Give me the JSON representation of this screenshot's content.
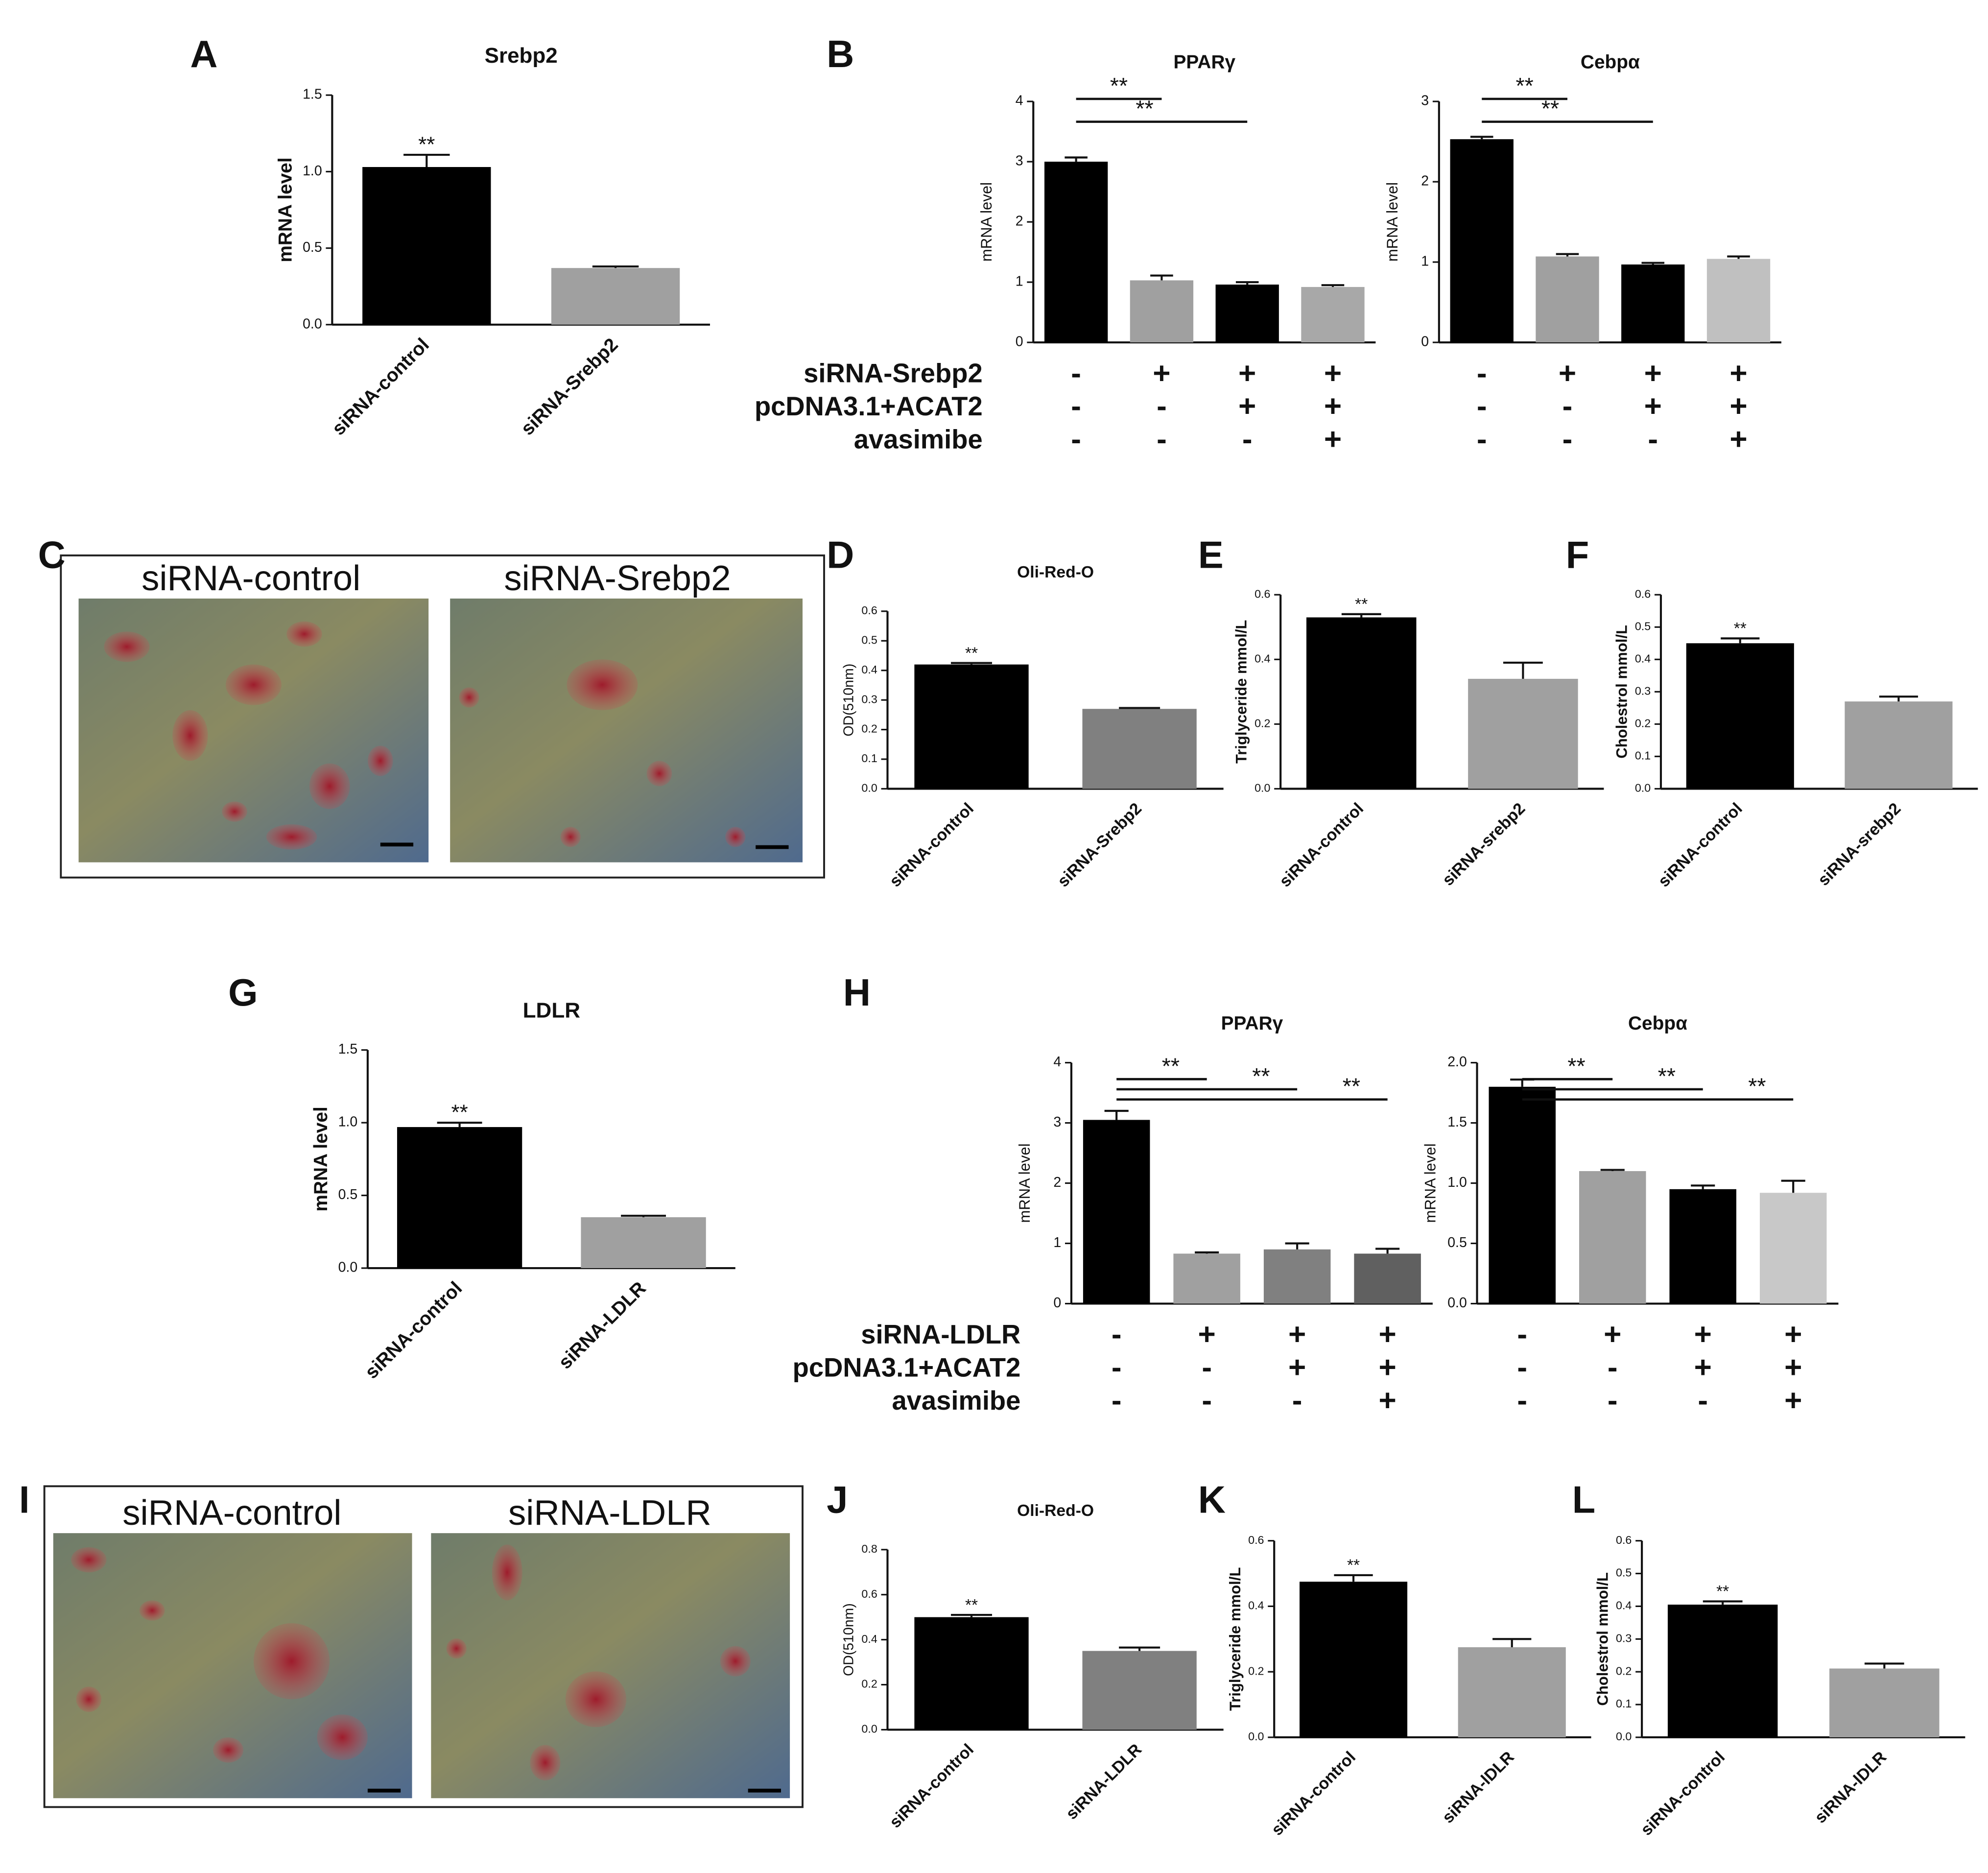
{
  "chart_data": [
    {
      "type": "bar",
      "panel": "A",
      "title": "Srebp2",
      "ylabel": "mRNA level",
      "categories": [
        "siRNA-control",
        "siRNA-Srebp2"
      ],
      "values": [
        1.03,
        0.37
      ],
      "errors": [
        0.08,
        0.01
      ],
      "colors": [
        "#000000",
        "#a0a0a0"
      ],
      "ylim": [
        0,
        1.5
      ],
      "yticks": [
        {
          "value": 0,
          "label": "0.0"
        },
        0.5,
        {
          "value": 1,
          "label": "1.0"
        },
        1.5
      ],
      "significance": [
        {
          "label": "**",
          "bar": 0
        }
      ]
    },
    {
      "type": "bar",
      "panel": "B",
      "title": "PPARγ",
      "ylabel": "mRNA level",
      "categories": [
        null,
        null,
        null,
        null
      ],
      "values": [
        3.0,
        1.03,
        0.96,
        0.92
      ],
      "errors": [
        0.07,
        0.08,
        0.04,
        0.03
      ],
      "colors": [
        "#000000",
        "#a0a0a0",
        "#000000",
        "#a8a8a8"
      ],
      "ylim": [
        0,
        4
      ],
      "yticks": [
        0,
        1,
        2,
        3,
        4
      ],
      "significance": [
        {
          "label": "**",
          "from": 0,
          "to": 1
        },
        {
          "label": "**",
          "from": 0,
          "to": 2
        }
      ],
      "condition_labels": [
        "siRNA-Srebp2",
        "pcDNA3.1+ACAT2",
        "avasimibe"
      ],
      "condition_signs": [
        [
          "-",
          "+",
          "+",
          "+"
        ],
        [
          "-",
          "-",
          "+",
          "+"
        ],
        [
          "-",
          "-",
          "-",
          "+"
        ]
      ]
    },
    {
      "type": "bar",
      "title": "Cebpα",
      "ylabel": "mRNA level",
      "categories": [
        null,
        null,
        null,
        null
      ],
      "values": [
        2.53,
        1.07,
        0.97,
        1.04
      ],
      "errors": [
        0.03,
        0.03,
        0.02,
        0.03
      ],
      "colors": [
        "#000000",
        "#a0a0a0",
        "#000000",
        "#c0c0c0"
      ],
      "ylim": [
        0,
        3
      ],
      "yticks": [
        0,
        1,
        2,
        3
      ],
      "significance": [
        {
          "label": "**",
          "from": 0,
          "to": 1
        },
        {
          "label": "**",
          "from": 0,
          "to": 2
        }
      ],
      "condition_signs": [
        [
          "-",
          "+",
          "+",
          "+"
        ],
        [
          "-",
          "-",
          "+",
          "+"
        ],
        [
          "-",
          "-",
          "-",
          "+"
        ]
      ]
    },
    {
      "type": "bar",
      "panel": "D",
      "title": "Oli-Red-O",
      "ylabel": "OD(510nm)",
      "categories": [
        "siRNA-control",
        "siRNA-Srebp2"
      ],
      "values": [
        0.42,
        0.27
      ],
      "errors": [
        0.005,
        0.003
      ],
      "colors": [
        "#000000",
        "#808080"
      ],
      "ylim": [
        0,
        0.6
      ],
      "yticks": [
        {
          "value": 0,
          "label": "0.0"
        },
        0.1,
        0.2,
        0.3,
        0.4,
        0.5,
        0.6
      ],
      "significance": [
        {
          "label": "**",
          "bar": 0
        }
      ]
    },
    {
      "type": "bar",
      "panel": "E",
      "ylabel": "Triglyceride mmol/L",
      "categories": [
        "siRNA-control",
        "siRNA-srebp2"
      ],
      "values": [
        0.53,
        0.34
      ],
      "errors": [
        0.01,
        0.05
      ],
      "colors": [
        "#000000",
        "#a0a0a0"
      ],
      "ylim": [
        0,
        0.6
      ],
      "yticks": [
        {
          "value": 0,
          "label": "0.0"
        },
        0.2,
        0.4,
        0.6
      ],
      "significance": [
        {
          "label": "**",
          "bar": 0
        }
      ]
    },
    {
      "type": "bar",
      "panel": "F",
      "ylabel": "Cholestrol mmol/L",
      "categories": [
        "siRNA-control",
        "siRNA-srebp2"
      ],
      "values": [
        0.45,
        0.27
      ],
      "errors": [
        0.015,
        0.015
      ],
      "colors": [
        "#000000",
        "#a0a0a0"
      ],
      "ylim": [
        0,
        0.6
      ],
      "yticks": [
        {
          "value": 0,
          "label": "0.0"
        },
        0.1,
        0.2,
        0.3,
        0.4,
        0.5,
        0.6
      ],
      "significance": [
        {
          "label": "**",
          "bar": 0
        }
      ]
    },
    {
      "type": "bar",
      "panel": "G",
      "title": "LDLR",
      "ylabel": "mRNA level",
      "categories": [
        "siRNA-control",
        "siRNA-LDLR"
      ],
      "values": [
        0.97,
        0.35
      ],
      "errors": [
        0.03,
        0.01
      ],
      "colors": [
        "#000000",
        "#a0a0a0"
      ],
      "ylim": [
        0,
        1.5
      ],
      "yticks": [
        {
          "value": 0,
          "label": "0.0"
        },
        0.5,
        {
          "value": 1,
          "label": "1.0"
        },
        1.5
      ],
      "significance": [
        {
          "label": "**",
          "bar": 0
        }
      ]
    },
    {
      "type": "bar",
      "panel": "H",
      "title": "PPARγ",
      "ylabel": "mRNA level",
      "categories": [
        null,
        null,
        null,
        null
      ],
      "values": [
        3.05,
        0.83,
        0.9,
        0.83
      ],
      "errors": [
        0.15,
        0.02,
        0.1,
        0.08
      ],
      "colors": [
        "#000000",
        "#a0a0a0",
        "#808080",
        "#606060"
      ],
      "ylim": [
        0,
        4
      ],
      "yticks": [
        0,
        1,
        2,
        3,
        4
      ],
      "significance": [
        {
          "label": "**",
          "from": 0,
          "to": 1
        },
        {
          "label": "**",
          "from": 0,
          "to": 2
        },
        {
          "label": "**",
          "from": 0,
          "to": 3
        }
      ],
      "condition_labels": [
        "siRNA-LDLR",
        "pcDNA3.1+ACAT2",
        "avasimibe"
      ],
      "condition_signs": [
        [
          "-",
          "+",
          "+",
          "+"
        ],
        [
          "-",
          "-",
          "+",
          "+"
        ],
        [
          "-",
          "-",
          "-",
          "+"
        ]
      ]
    },
    {
      "type": "bar",
      "title": "Cebpα",
      "ylabel": "mRNA level",
      "categories": [
        null,
        null,
        null,
        null
      ],
      "values": [
        1.8,
        1.1,
        0.95,
        0.92
      ],
      "errors": [
        0.06,
        0.01,
        0.03,
        0.1
      ],
      "colors": [
        "#000000",
        "#a0a0a0",
        "#000000",
        "#c8c8c8"
      ],
      "ylim": [
        0,
        2
      ],
      "yticks": [
        {
          "value": 0,
          "label": "0.0"
        },
        0.5,
        {
          "value": 1,
          "label": "1.0"
        },
        1.5,
        {
          "value": 2,
          "label": "2.0"
        }
      ],
      "significance": [
        {
          "label": "**",
          "from": 0,
          "to": 1
        },
        {
          "label": "**",
          "from": 0,
          "to": 2
        },
        {
          "label": "**",
          "from": 0,
          "to": 3
        }
      ],
      "condition_signs": [
        [
          "-",
          "+",
          "+",
          "+"
        ],
        [
          "-",
          "-",
          "+",
          "+"
        ],
        [
          "-",
          "-",
          "-",
          "+"
        ]
      ]
    },
    {
      "type": "bar",
      "panel": "J",
      "title": "Oli-Red-O",
      "ylabel": "OD(510nm)",
      "categories": [
        "siRNA-control",
        "siRNA-LDLR"
      ],
      "values": [
        0.5,
        0.35
      ],
      "errors": [
        0.01,
        0.015
      ],
      "colors": [
        "#000000",
        "#808080"
      ],
      "ylim": [
        0,
        0.8
      ],
      "yticks": [
        {
          "value": 0,
          "label": "0.0"
        },
        0.2,
        0.4,
        0.6,
        0.8
      ],
      "significance": [
        {
          "label": "**",
          "bar": 0
        }
      ]
    },
    {
      "type": "bar",
      "panel": "K",
      "ylabel": "Triglyceride mmol/L",
      "categories": [
        "siRNA-control",
        "siRNA-lDLR"
      ],
      "values": [
        0.475,
        0.275
      ],
      "errors": [
        0.02,
        0.025
      ],
      "colors": [
        "#000000",
        "#a0a0a0"
      ],
      "ylim": [
        0,
        0.6
      ],
      "yticks": [
        {
          "value": 0,
          "label": "0.0"
        },
        0.2,
        0.4,
        0.6
      ],
      "significance": [
        {
          "label": "**",
          "bar": 0
        }
      ]
    },
    {
      "type": "bar",
      "panel": "L",
      "ylabel": "Cholestrol mmol/L",
      "categories": [
        "siRNA-control",
        "siRNA-lDLR"
      ],
      "values": [
        0.405,
        0.21
      ],
      "errors": [
        0.01,
        0.015
      ],
      "colors": [
        "#000000",
        "#a0a0a0"
      ],
      "ylim": [
        0,
        0.6
      ],
      "yticks": [
        {
          "value": 0,
          "label": "0.0"
        },
        0.1,
        0.2,
        0.3,
        0.4,
        0.5,
        0.6
      ],
      "significance": [
        {
          "label": "**",
          "bar": 0
        }
      ]
    }
  ],
  "images": [
    {
      "panel": "C",
      "labels": [
        "siRNA-control",
        "siRNA-Srebp2"
      ]
    },
    {
      "panel": "I",
      "labels": [
        "siRNA-control",
        "siRNA-LDLR"
      ]
    }
  ]
}
